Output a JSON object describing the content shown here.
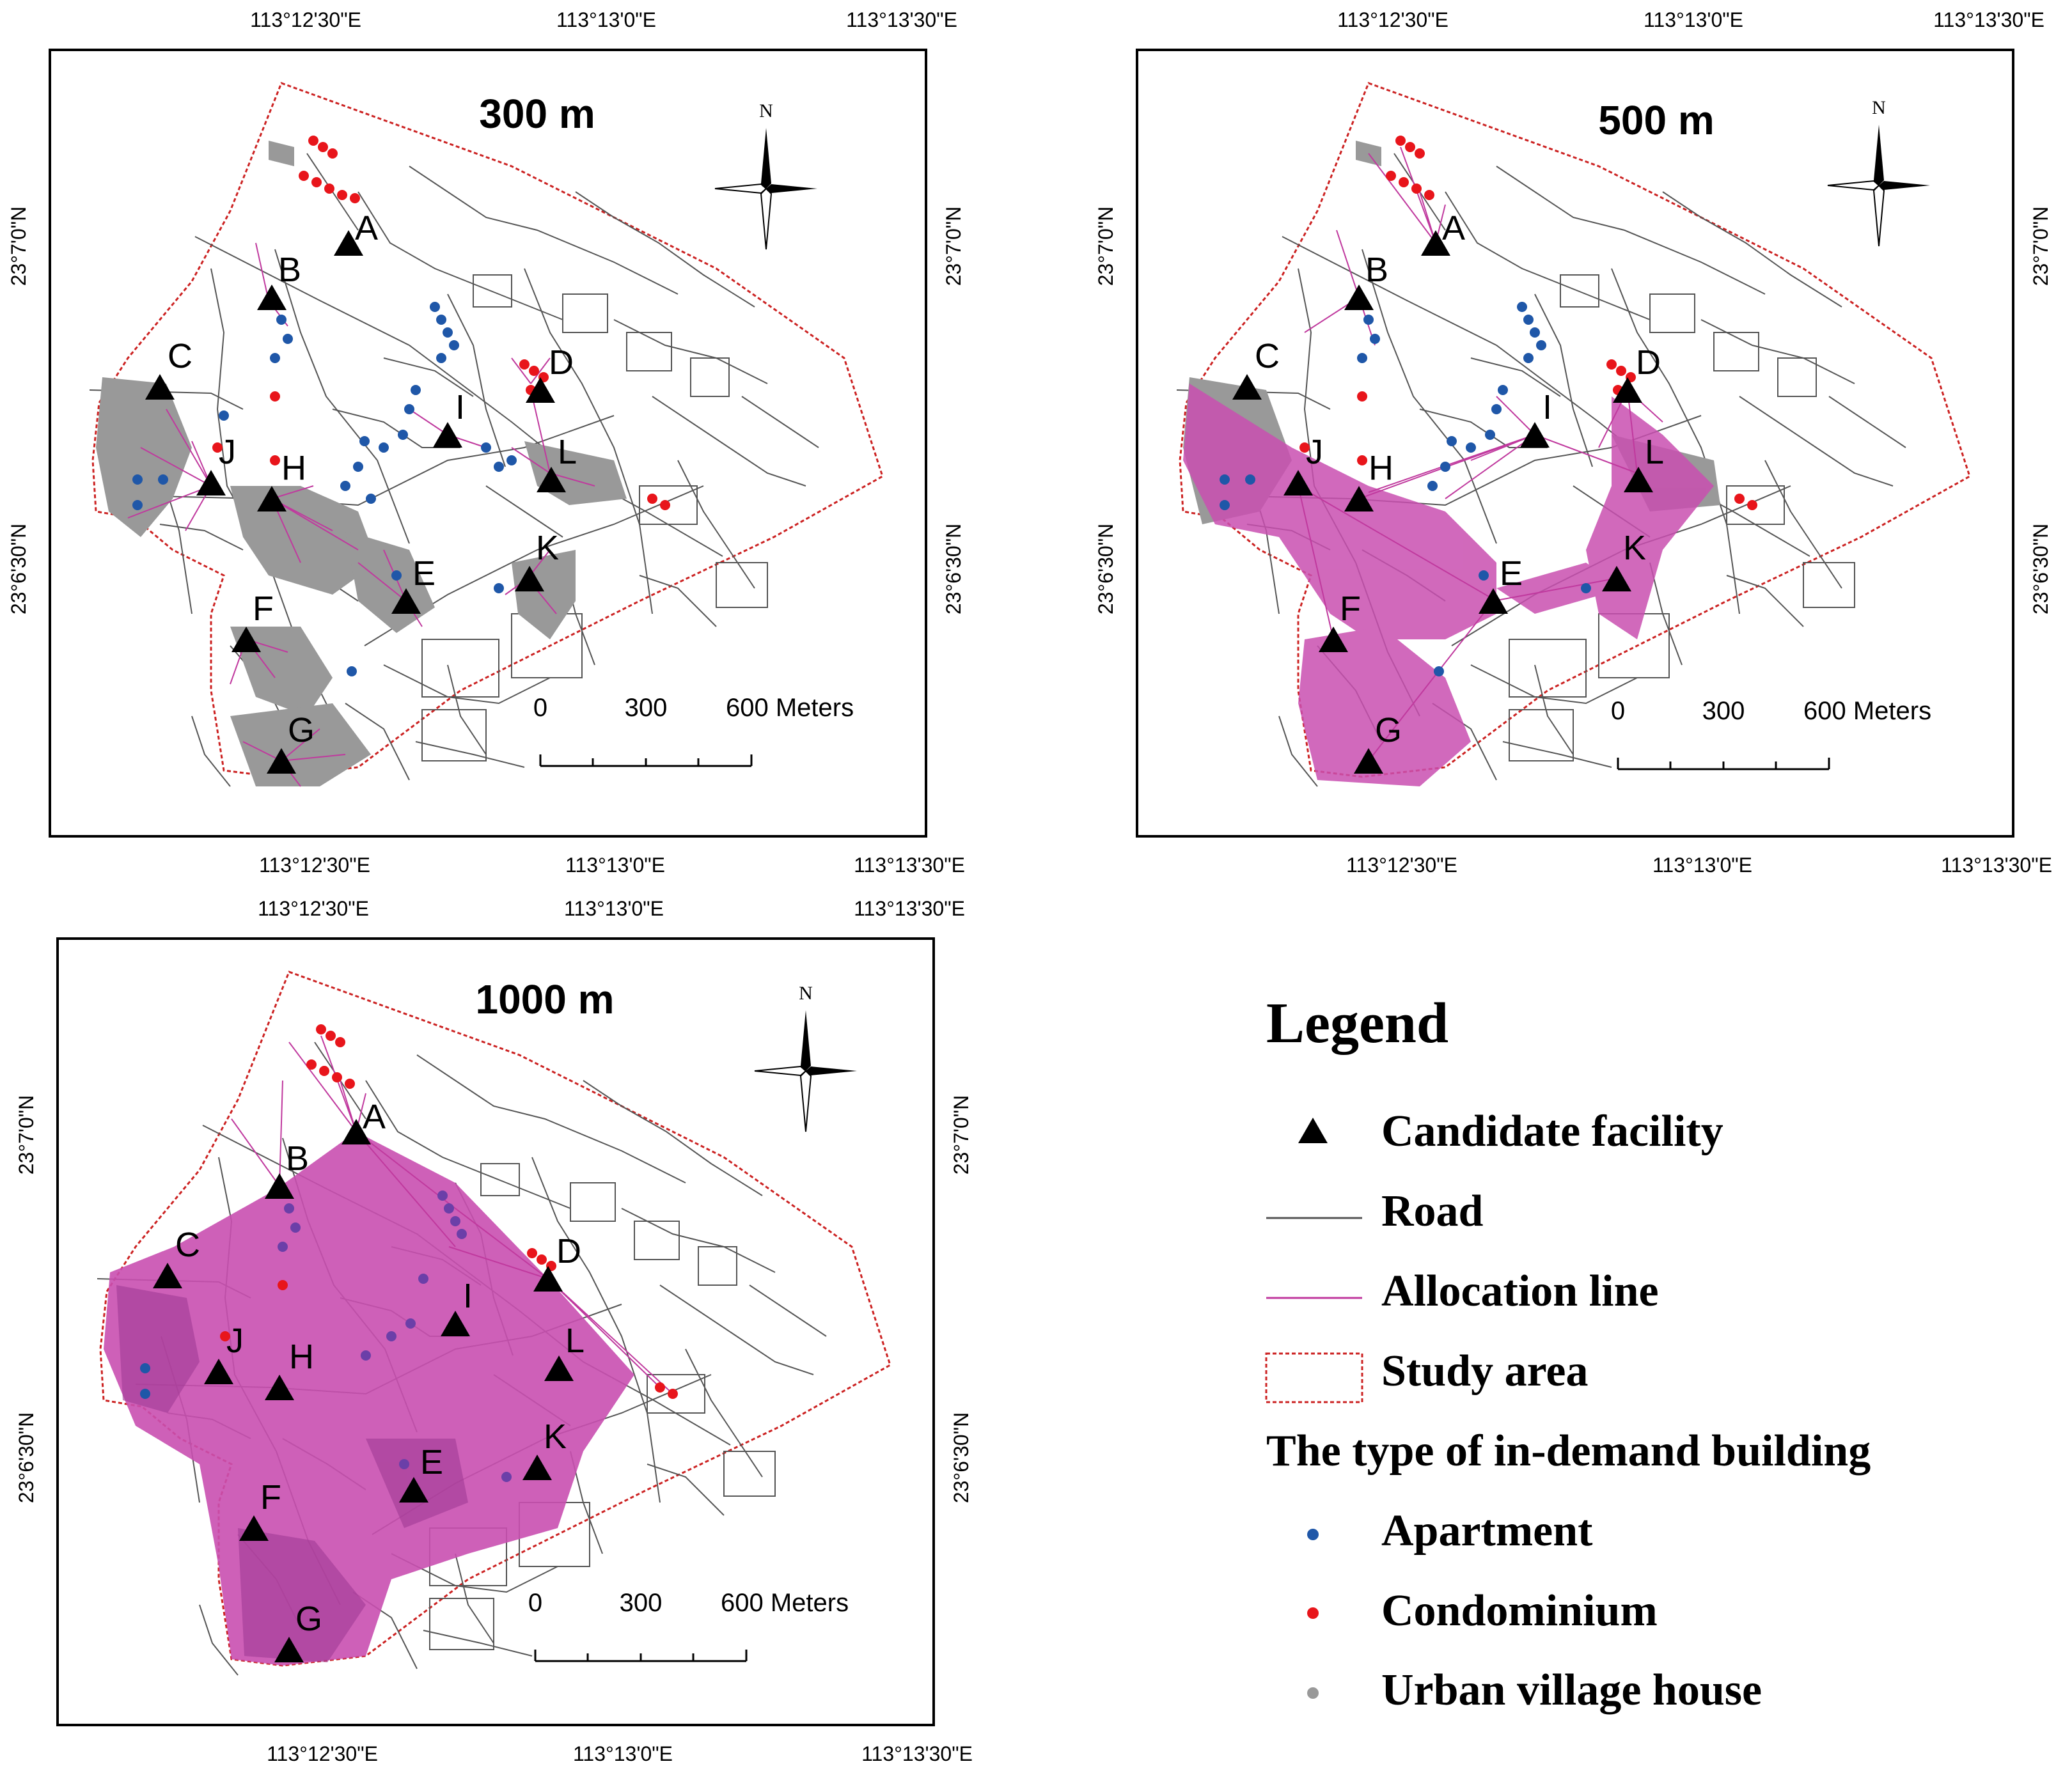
{
  "panels": [
    {
      "id": "p300",
      "title": "300 m",
      "top_ticks": [
        "113°12'30\"E",
        "113°13'0\"E",
        "113°13'30\"E"
      ],
      "bottom_ticks": [
        "113°12'30\"E",
        "113°13'0\"E",
        "113°13'30\"E"
      ],
      "left_ticks": [
        "23°7'0\"N",
        "23°6'30\"N"
      ],
      "right_ticks": [
        "23°7'0\"N",
        "23°6'30\"N"
      ],
      "coverage": "low"
    },
    {
      "id": "p500",
      "title": "500 m",
      "top_ticks": [
        "113°12'30\"E",
        "113°13'0\"E",
        "113°13'30\"E"
      ],
      "bottom_ticks": [
        "113°12'30\"E",
        "113°13'0\"E",
        "113°13'30\"E"
      ],
      "left_ticks": [
        "23°7'0\"N",
        "23°6'30\"N"
      ],
      "right_ticks": [
        "23°7'0\"N",
        "23°6'30\"N"
      ],
      "coverage": "medium"
    },
    {
      "id": "p1000",
      "title": "1000 m",
      "top_ticks": [
        "113°12'30\"E",
        "113°13'0\"E",
        "113°13'30\"E"
      ],
      "bottom_ticks": [
        "113°12'30\"E",
        "113°13'0\"E",
        "113°13'30\"E"
      ],
      "left_ticks": [
        "23°7'0\"N",
        "23°6'30\"N"
      ],
      "right_ticks": [
        "23°7'0\"N",
        "23°6'30\"N"
      ],
      "coverage": "high"
    }
  ],
  "facilities": [
    "A",
    "B",
    "C",
    "D",
    "E",
    "F",
    "G",
    "H",
    "I",
    "J",
    "K",
    "L"
  ],
  "north_label": "N",
  "scale_bar": {
    "labels": [
      "0",
      "300",
      "600 Meters"
    ]
  },
  "legend": {
    "title": "Legend",
    "items": [
      {
        "label": "Candidate facility",
        "symbol": "triangle"
      },
      {
        "label": "Road",
        "symbol": "line"
      },
      {
        "label": "Allocation line",
        "symbol": "line"
      },
      {
        "label": "Study area",
        "symbol": "polygon"
      }
    ],
    "subheading": "The type of in-demand building",
    "building_types": [
      {
        "label": "Apartment",
        "color": "#1f57a8"
      },
      {
        "label": "Condominium",
        "color": "#e8151b"
      },
      {
        "label": "Urban village house",
        "color": "#999999"
      }
    ]
  },
  "colors": {
    "road": "#555555",
    "allocation": "#c0399e",
    "allocation_fill": "#c94fb0",
    "study_area": "#cc2222",
    "urban_village": "#999999",
    "apartment": "#1f57a8",
    "condominium": "#e8151b"
  }
}
